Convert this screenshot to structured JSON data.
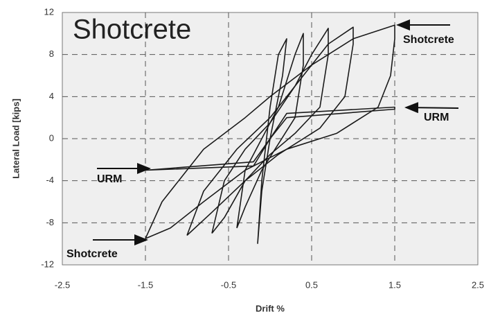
{
  "chart_data": {
    "type": "line",
    "title": "Shotcrete",
    "x_label": "Drift %",
    "y_label": "Lateral Load [kips]",
    "annotations": [
      "Shotcrete",
      "URM",
      "URM",
      "Shotcrete"
    ],
    "xlim": [
      -2.5,
      2.5
    ],
    "xticks": [
      -2.5,
      -1.5,
      -0.5,
      0.5,
      1.5,
      2.5
    ],
    "ylim": [
      -12,
      12
    ],
    "yticks": [
      -12,
      -8,
      -4,
      0,
      4,
      8,
      12
    ],
    "grid": true,
    "series": [
      {
        "color": "#1a1a1a",
        "x": [
          -1.5,
          -1.3,
          -0.8,
          -0.3,
          0,
          0.5,
          1,
          1.5,
          1.5,
          1.45,
          1.3,
          0.8,
          0.2,
          -0.3,
          -0.8,
          -1.2,
          -1.5
        ],
        "values": [
          -9.5,
          -6,
          -1,
          2,
          4,
          7,
          9.5,
          10.8,
          9.5,
          6,
          3,
          0.5,
          -1,
          -3,
          -6,
          -8.5,
          -9.5
        ]
      },
      {
        "color": "#1a1a1a",
        "x": [
          -1.5,
          -0.2,
          0,
          0.2,
          1.5,
          1.5,
          0.2,
          0,
          -0.2,
          -1.5
        ],
        "values": [
          -3,
          -2.2,
          0,
          2.4,
          3,
          2.8,
          2,
          0,
          -2.6,
          -3
        ]
      },
      {
        "color": "#1a1a1a",
        "x": [
          -1,
          -0.8,
          -0.4,
          0,
          0.4,
          0.7,
          1,
          1,
          0.9,
          0.6,
          0.1,
          -0.3,
          -0.7,
          -1
        ],
        "values": [
          -9.2,
          -5,
          -1,
          2,
          6,
          9,
          10.6,
          9,
          4,
          1,
          -1.5,
          -4,
          -7,
          -9.2
        ]
      },
      {
        "color": "#1a1a1a",
        "x": [
          -0.7,
          -0.55,
          -0.3,
          0,
          0.3,
          0.5,
          0.7,
          0.7,
          0.6,
          0.3,
          0,
          -0.3,
          -0.55,
          -0.7
        ],
        "values": [
          -9,
          -4,
          -1,
          1.5,
          5,
          8,
          10.5,
          8,
          3,
          0.5,
          -1.5,
          -4,
          -7.5,
          -9
        ]
      },
      {
        "color": "#1a1a1a",
        "x": [
          -0.4,
          -0.3,
          -0.1,
          0.1,
          0.3,
          0.4,
          0.4,
          0.3,
          0.1,
          -0.1,
          -0.3,
          -0.4
        ],
        "values": [
          -8.5,
          -3,
          0,
          3,
          8,
          10,
          7,
          2,
          -0.5,
          -3,
          -6.5,
          -8.5
        ]
      },
      {
        "color": "#1a1a1a",
        "x": [
          -0.15,
          -0.1,
          0,
          0.1,
          0.2,
          0.15,
          0,
          -0.1,
          -0.15
        ],
        "values": [
          -10,
          -4,
          3,
          8,
          9.5,
          6,
          0,
          -5,
          -10
        ]
      }
    ]
  }
}
